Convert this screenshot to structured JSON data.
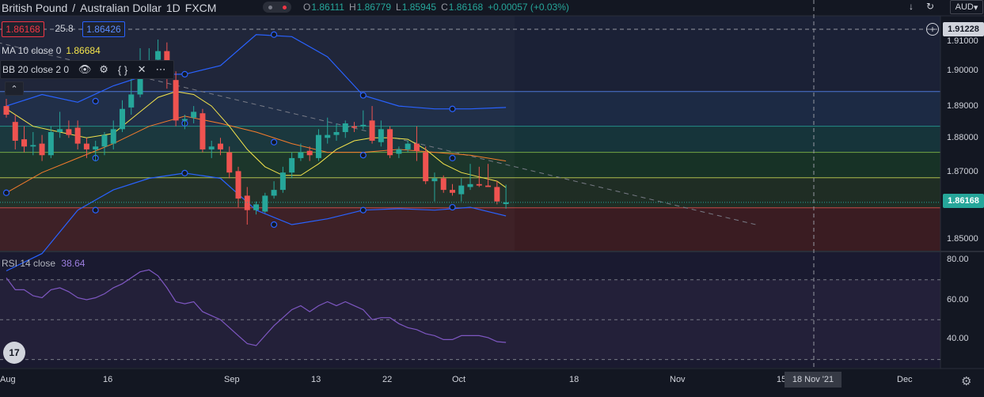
{
  "header": {
    "base_currency": "British Pound",
    "quote_currency": "Australian Dollar",
    "separator": "/",
    "interval": "1D",
    "exchange": "FXCM",
    "ohlc": {
      "o_label": "O",
      "o_value": "1.86111",
      "h_label": "H",
      "h_value": "1.86779",
      "l_label": "L",
      "l_value": "1.85945",
      "c_label": "C",
      "c_value": "1.86168",
      "change": "+0.00057 (+0.03%)"
    }
  },
  "trade": {
    "sell_price": "1.86168",
    "spread": "25.8",
    "buy_price": "1.86426"
  },
  "indicators": {
    "ma_label": "MA 10 close 0",
    "ma_value": "1.86684",
    "bb_label": "BB 20 close 2 0",
    "rsi_label": "RSI 14 close",
    "rsi_value": "38.64"
  },
  "toolbar": {
    "currency": "AUD"
  },
  "price_axis": {
    "ticks": [
      "1.91000",
      "1.90000",
      "1.89000",
      "1.88000",
      "1.87000",
      "1.85000"
    ],
    "dashed_badge": "1.91228",
    "last_price_badge": "1.86168"
  },
  "rsi_axis": {
    "ticks": [
      "80.00",
      "60.00",
      "40.00"
    ]
  },
  "time_axis": {
    "labels": [
      "Aug",
      "16",
      "Sep",
      "13",
      "22",
      "Oct",
      "18",
      "Nov",
      "15",
      "Dec"
    ],
    "crosshair_date": "18 Nov '21"
  },
  "brand": {
    "logo_text": "17"
  },
  "colors": {
    "up": "#26a69a",
    "down": "#ef5350",
    "ma": "#f5e54c",
    "bb_basis": "#f57c2c",
    "bb_band": "#2962ff",
    "rsi": "#7e57c2",
    "background": "#131722"
  },
  "chart_data": {
    "type": "candlestick",
    "title": "British Pound / Australian Dollar",
    "ylim": [
      1.8447,
      1.9262
    ],
    "horizontal_levels": [
      1.9,
      1.888,
      1.879,
      1.8702,
      1.8598
    ],
    "candles": [
      {
        "i": 0,
        "o": 1.895,
        "h": 1.8975,
        "l": 1.891,
        "c": 1.892
      },
      {
        "i": 1,
        "o": 1.8895,
        "h": 1.892,
        "l": 1.88,
        "c": 1.883
      },
      {
        "i": 2,
        "o": 1.8835,
        "h": 1.888,
        "l": 1.879,
        "c": 1.881
      },
      {
        "i": 3,
        "o": 1.881,
        "h": 1.886,
        "l": 1.878,
        "c": 1.8815
      },
      {
        "i": 4,
        "o": 1.882,
        "h": 1.885,
        "l": 1.876,
        "c": 1.878
      },
      {
        "i": 5,
        "o": 1.878,
        "h": 1.888,
        "l": 1.877,
        "c": 1.886
      },
      {
        "i": 6,
        "o": 1.886,
        "h": 1.893,
        "l": 1.884,
        "c": 1.887
      },
      {
        "i": 7,
        "o": 1.887,
        "h": 1.89,
        "l": 1.884,
        "c": 1.885
      },
      {
        "i": 8,
        "o": 1.8875,
        "h": 1.89,
        "l": 1.88,
        "c": 1.882
      },
      {
        "i": 9,
        "o": 1.882,
        "h": 1.884,
        "l": 1.877,
        "c": 1.88
      },
      {
        "i": 10,
        "o": 1.88,
        "h": 1.883,
        "l": 1.876,
        "c": 1.881
      },
      {
        "i": 11,
        "o": 1.881,
        "h": 1.886,
        "l": 1.878,
        "c": 1.885
      },
      {
        "i": 12,
        "o": 1.882,
        "h": 1.89,
        "l": 1.88,
        "c": 1.887
      },
      {
        "i": 13,
        "o": 1.887,
        "h": 1.897,
        "l": 1.886,
        "c": 1.894
      },
      {
        "i": 14,
        "o": 1.8945,
        "h": 1.905,
        "l": 1.892,
        "c": 1.899
      },
      {
        "i": 15,
        "o": 1.899,
        "h": 1.915,
        "l": 1.898,
        "c": 1.908
      },
      {
        "i": 16,
        "o": 1.907,
        "h": 1.915,
        "l": 1.905,
        "c": 1.91
      },
      {
        "i": 17,
        "o": 1.911,
        "h": 1.918,
        "l": 1.906,
        "c": 1.914
      },
      {
        "i": 18,
        "o": 1.914,
        "h": 1.917,
        "l": 1.901,
        "c": 1.905
      },
      {
        "i": 19,
        "o": 1.904,
        "h": 1.907,
        "l": 1.888,
        "c": 1.89
      },
      {
        "i": 20,
        "o": 1.89,
        "h": 1.892,
        "l": 1.887,
        "c": 1.8905
      },
      {
        "i": 21,
        "o": 1.891,
        "h": 1.895,
        "l": 1.889,
        "c": 1.893
      },
      {
        "i": 22,
        "o": 1.8925,
        "h": 1.894,
        "l": 1.879,
        "c": 1.88
      },
      {
        "i": 23,
        "o": 1.88,
        "h": 1.883,
        "l": 1.877,
        "c": 1.881
      },
      {
        "i": 24,
        "o": 1.882,
        "h": 1.884,
        "l": 1.878,
        "c": 1.88
      },
      {
        "i": 25,
        "o": 1.879,
        "h": 1.881,
        "l": 1.87,
        "c": 1.872
      },
      {
        "i": 26,
        "o": 1.8725,
        "h": 1.874,
        "l": 1.86,
        "c": 1.863
      },
      {
        "i": 27,
        "o": 1.864,
        "h": 1.867,
        "l": 1.854,
        "c": 1.859
      },
      {
        "i": 28,
        "o": 1.859,
        "h": 1.862,
        "l": 1.8575,
        "c": 1.861
      },
      {
        "i": 29,
        "o": 1.8585,
        "h": 1.865,
        "l": 1.858,
        "c": 1.864
      },
      {
        "i": 30,
        "o": 1.864,
        "h": 1.869,
        "l": 1.863,
        "c": 1.866
      },
      {
        "i": 31,
        "o": 1.866,
        "h": 1.874,
        "l": 1.865,
        "c": 1.872
      },
      {
        "i": 32,
        "o": 1.872,
        "h": 1.879,
        "l": 1.87,
        "c": 1.877
      },
      {
        "i": 33,
        "o": 1.877,
        "h": 1.882,
        "l": 1.876,
        "c": 1.879
      },
      {
        "i": 34,
        "o": 1.8795,
        "h": 1.881,
        "l": 1.876,
        "c": 1.878
      },
      {
        "i": 35,
        "o": 1.877,
        "h": 1.887,
        "l": 1.876,
        "c": 1.885
      },
      {
        "i": 36,
        "o": 1.884,
        "h": 1.891,
        "l": 1.882,
        "c": 1.885
      },
      {
        "i": 37,
        "o": 1.885,
        "h": 1.889,
        "l": 1.883,
        "c": 1.886
      },
      {
        "i": 38,
        "o": 1.886,
        "h": 1.89,
        "l": 1.884,
        "c": 1.889
      },
      {
        "i": 39,
        "o": 1.888,
        "h": 1.8895,
        "l": 1.886,
        "c": 1.8875
      },
      {
        "i": 40,
        "o": 1.888,
        "h": 1.8935,
        "l": 1.887,
        "c": 1.8885
      },
      {
        "i": 41,
        "o": 1.89,
        "h": 1.895,
        "l": 1.882,
        "c": 1.883
      },
      {
        "i": 42,
        "o": 1.8825,
        "h": 1.89,
        "l": 1.881,
        "c": 1.887
      },
      {
        "i": 43,
        "o": 1.887,
        "h": 1.888,
        "l": 1.877,
        "c": 1.878
      },
      {
        "i": 44,
        "o": 1.8785,
        "h": 1.881,
        "l": 1.877,
        "c": 1.88
      },
      {
        "i": 45,
        "o": 1.88,
        "h": 1.883,
        "l": 1.879,
        "c": 1.882
      },
      {
        "i": 46,
        "o": 1.882,
        "h": 1.888,
        "l": 1.876,
        "c": 1.8795
      },
      {
        "i": 47,
        "o": 1.879,
        "h": 1.881,
        "l": 1.868,
        "c": 1.869
      },
      {
        "i": 48,
        "o": 1.869,
        "h": 1.872,
        "l": 1.862,
        "c": 1.87
      },
      {
        "i": 49,
        "o": 1.87,
        "h": 1.871,
        "l": 1.865,
        "c": 1.866
      },
      {
        "i": 50,
        "o": 1.866,
        "h": 1.868,
        "l": 1.864,
        "c": 1.865
      },
      {
        "i": 51,
        "o": 1.8645,
        "h": 1.87,
        "l": 1.862,
        "c": 1.8675
      },
      {
        "i": 52,
        "o": 1.867,
        "h": 1.875,
        "l": 1.866,
        "c": 1.868
      },
      {
        "i": 53,
        "o": 1.868,
        "h": 1.874,
        "l": 1.867,
        "c": 1.8675
      },
      {
        "i": 54,
        "o": 1.8675,
        "h": 1.875,
        "l": 1.867,
        "c": 1.867
      },
      {
        "i": 55,
        "o": 1.867,
        "h": 1.869,
        "l": 1.861,
        "c": 1.862
      },
      {
        "i": 56,
        "o": 1.8611,
        "h": 1.8678,
        "l": 1.8595,
        "c": 1.8617
      }
    ],
    "ma10": [
      [
        0,
        1.894
      ],
      [
        3,
        1.888
      ],
      [
        6,
        1.886
      ],
      [
        9,
        1.884
      ],
      [
        12,
        1.8855
      ],
      [
        15,
        1.893
      ],
      [
        17,
        1.898
      ],
      [
        19,
        1.9
      ],
      [
        21,
        1.899
      ],
      [
        23,
        1.895
      ],
      [
        25,
        1.888
      ],
      [
        27,
        1.88
      ],
      [
        29,
        1.874
      ],
      [
        31,
        1.871
      ],
      [
        33,
        1.871
      ],
      [
        35,
        1.875
      ],
      [
        37,
        1.88
      ],
      [
        39,
        1.883
      ],
      [
        41,
        1.884
      ],
      [
        43,
        1.884
      ],
      [
        45,
        1.8835
      ],
      [
        47,
        1.88
      ],
      [
        49,
        1.875
      ],
      [
        51,
        1.872
      ],
      [
        53,
        1.8705
      ],
      [
        55,
        1.869
      ],
      [
        56,
        1.8668
      ]
    ],
    "bb_basis": [
      [
        0,
        1.865
      ],
      [
        4,
        1.872
      ],
      [
        8,
        1.877
      ],
      [
        12,
        1.882
      ],
      [
        16,
        1.888
      ],
      [
        20,
        1.8915
      ],
      [
        24,
        1.889
      ],
      [
        28,
        1.886
      ],
      [
        32,
        1.882
      ],
      [
        36,
        1.879
      ],
      [
        40,
        1.879
      ],
      [
        44,
        1.88
      ],
      [
        48,
        1.879
      ],
      [
        52,
        1.878
      ],
      [
        56,
        1.876
      ]
    ],
    "bb_upper": [
      [
        0,
        1.895
      ],
      [
        4,
        1.899
      ],
      [
        8,
        1.8963
      ],
      [
        12,
        1.902
      ],
      [
        16,
        1.906
      ],
      [
        20,
        1.906
      ],
      [
        24,
        1.909
      ],
      [
        28,
        1.9197
      ],
      [
        32,
        1.919
      ],
      [
        36,
        1.912
      ],
      [
        40,
        1.8987
      ],
      [
        44,
        1.895
      ],
      [
        48,
        1.894
      ],
      [
        52,
        1.894
      ],
      [
        56,
        1.8945
      ]
    ],
    "bb_lower": [
      [
        0,
        1.838
      ],
      [
        4,
        1.844
      ],
      [
        8,
        1.859
      ],
      [
        12,
        1.866
      ],
      [
        16,
        1.87
      ],
      [
        20,
        1.8718
      ],
      [
        24,
        1.87
      ],
      [
        28,
        1.859
      ],
      [
        32,
        1.854
      ],
      [
        36,
        1.856
      ],
      [
        40,
        1.859
      ],
      [
        44,
        1.8595
      ],
      [
        48,
        1.859
      ],
      [
        52,
        1.86
      ],
      [
        56,
        1.857
      ]
    ],
    "bb_markers": [
      [
        0,
        1.865
      ],
      [
        10,
        1.8967
      ],
      [
        10,
        1.877
      ],
      [
        10,
        1.859
      ],
      [
        20,
        1.906
      ],
      [
        20,
        1.889
      ],
      [
        20,
        1.8718
      ],
      [
        30,
        1.9197
      ],
      [
        30,
        1.8825
      ],
      [
        30,
        1.854
      ],
      [
        40,
        1.8987
      ],
      [
        40,
        1.878
      ],
      [
        40,
        1.859
      ],
      [
        50,
        1.894
      ],
      [
        50,
        1.877
      ],
      [
        50,
        1.86
      ]
    ],
    "trendline": [
      [
        -1,
        1.917
      ],
      [
        84,
        1.854
      ]
    ],
    "rsi": {
      "ylim": [
        25.9,
        84.2
      ],
      "levels": [
        70,
        50,
        30
      ],
      "values": [
        [
          0,
          71
        ],
        [
          1,
          65
        ],
        [
          2,
          65
        ],
        [
          3,
          62
        ],
        [
          4,
          61
        ],
        [
          5,
          65
        ],
        [
          6,
          66
        ],
        [
          7,
          64
        ],
        [
          8,
          61
        ],
        [
          9,
          60
        ],
        [
          10,
          61
        ],
        [
          11,
          63
        ],
        [
          12,
          66
        ],
        [
          13,
          68
        ],
        [
          14,
          71
        ],
        [
          15,
          74
        ],
        [
          16,
          75
        ],
        [
          17,
          72
        ],
        [
          18,
          66
        ],
        [
          19,
          59
        ],
        [
          20,
          58
        ],
        [
          21,
          59
        ],
        [
          22,
          54
        ],
        [
          23,
          52
        ],
        [
          24,
          50
        ],
        [
          25,
          46
        ],
        [
          26,
          42
        ],
        [
          27,
          38
        ],
        [
          28,
          37
        ],
        [
          29,
          42
        ],
        [
          30,
          47
        ],
        [
          31,
          51
        ],
        [
          32,
          55
        ],
        [
          33,
          57
        ],
        [
          34,
          54
        ],
        [
          35,
          57
        ],
        [
          36,
          59
        ],
        [
          37,
          57
        ],
        [
          38,
          59
        ],
        [
          39,
          57
        ],
        [
          40,
          55
        ],
        [
          41,
          50
        ],
        [
          42,
          51
        ],
        [
          43,
          51
        ],
        [
          44,
          48
        ],
        [
          45,
          46
        ],
        [
          46,
          45
        ],
        [
          47,
          43
        ],
        [
          48,
          42
        ],
        [
          49,
          40
        ],
        [
          50,
          40
        ],
        [
          51,
          42
        ],
        [
          52,
          42
        ],
        [
          53,
          42
        ],
        [
          54,
          41
        ],
        [
          55,
          39
        ],
        [
          56,
          38.6
        ]
      ]
    }
  }
}
